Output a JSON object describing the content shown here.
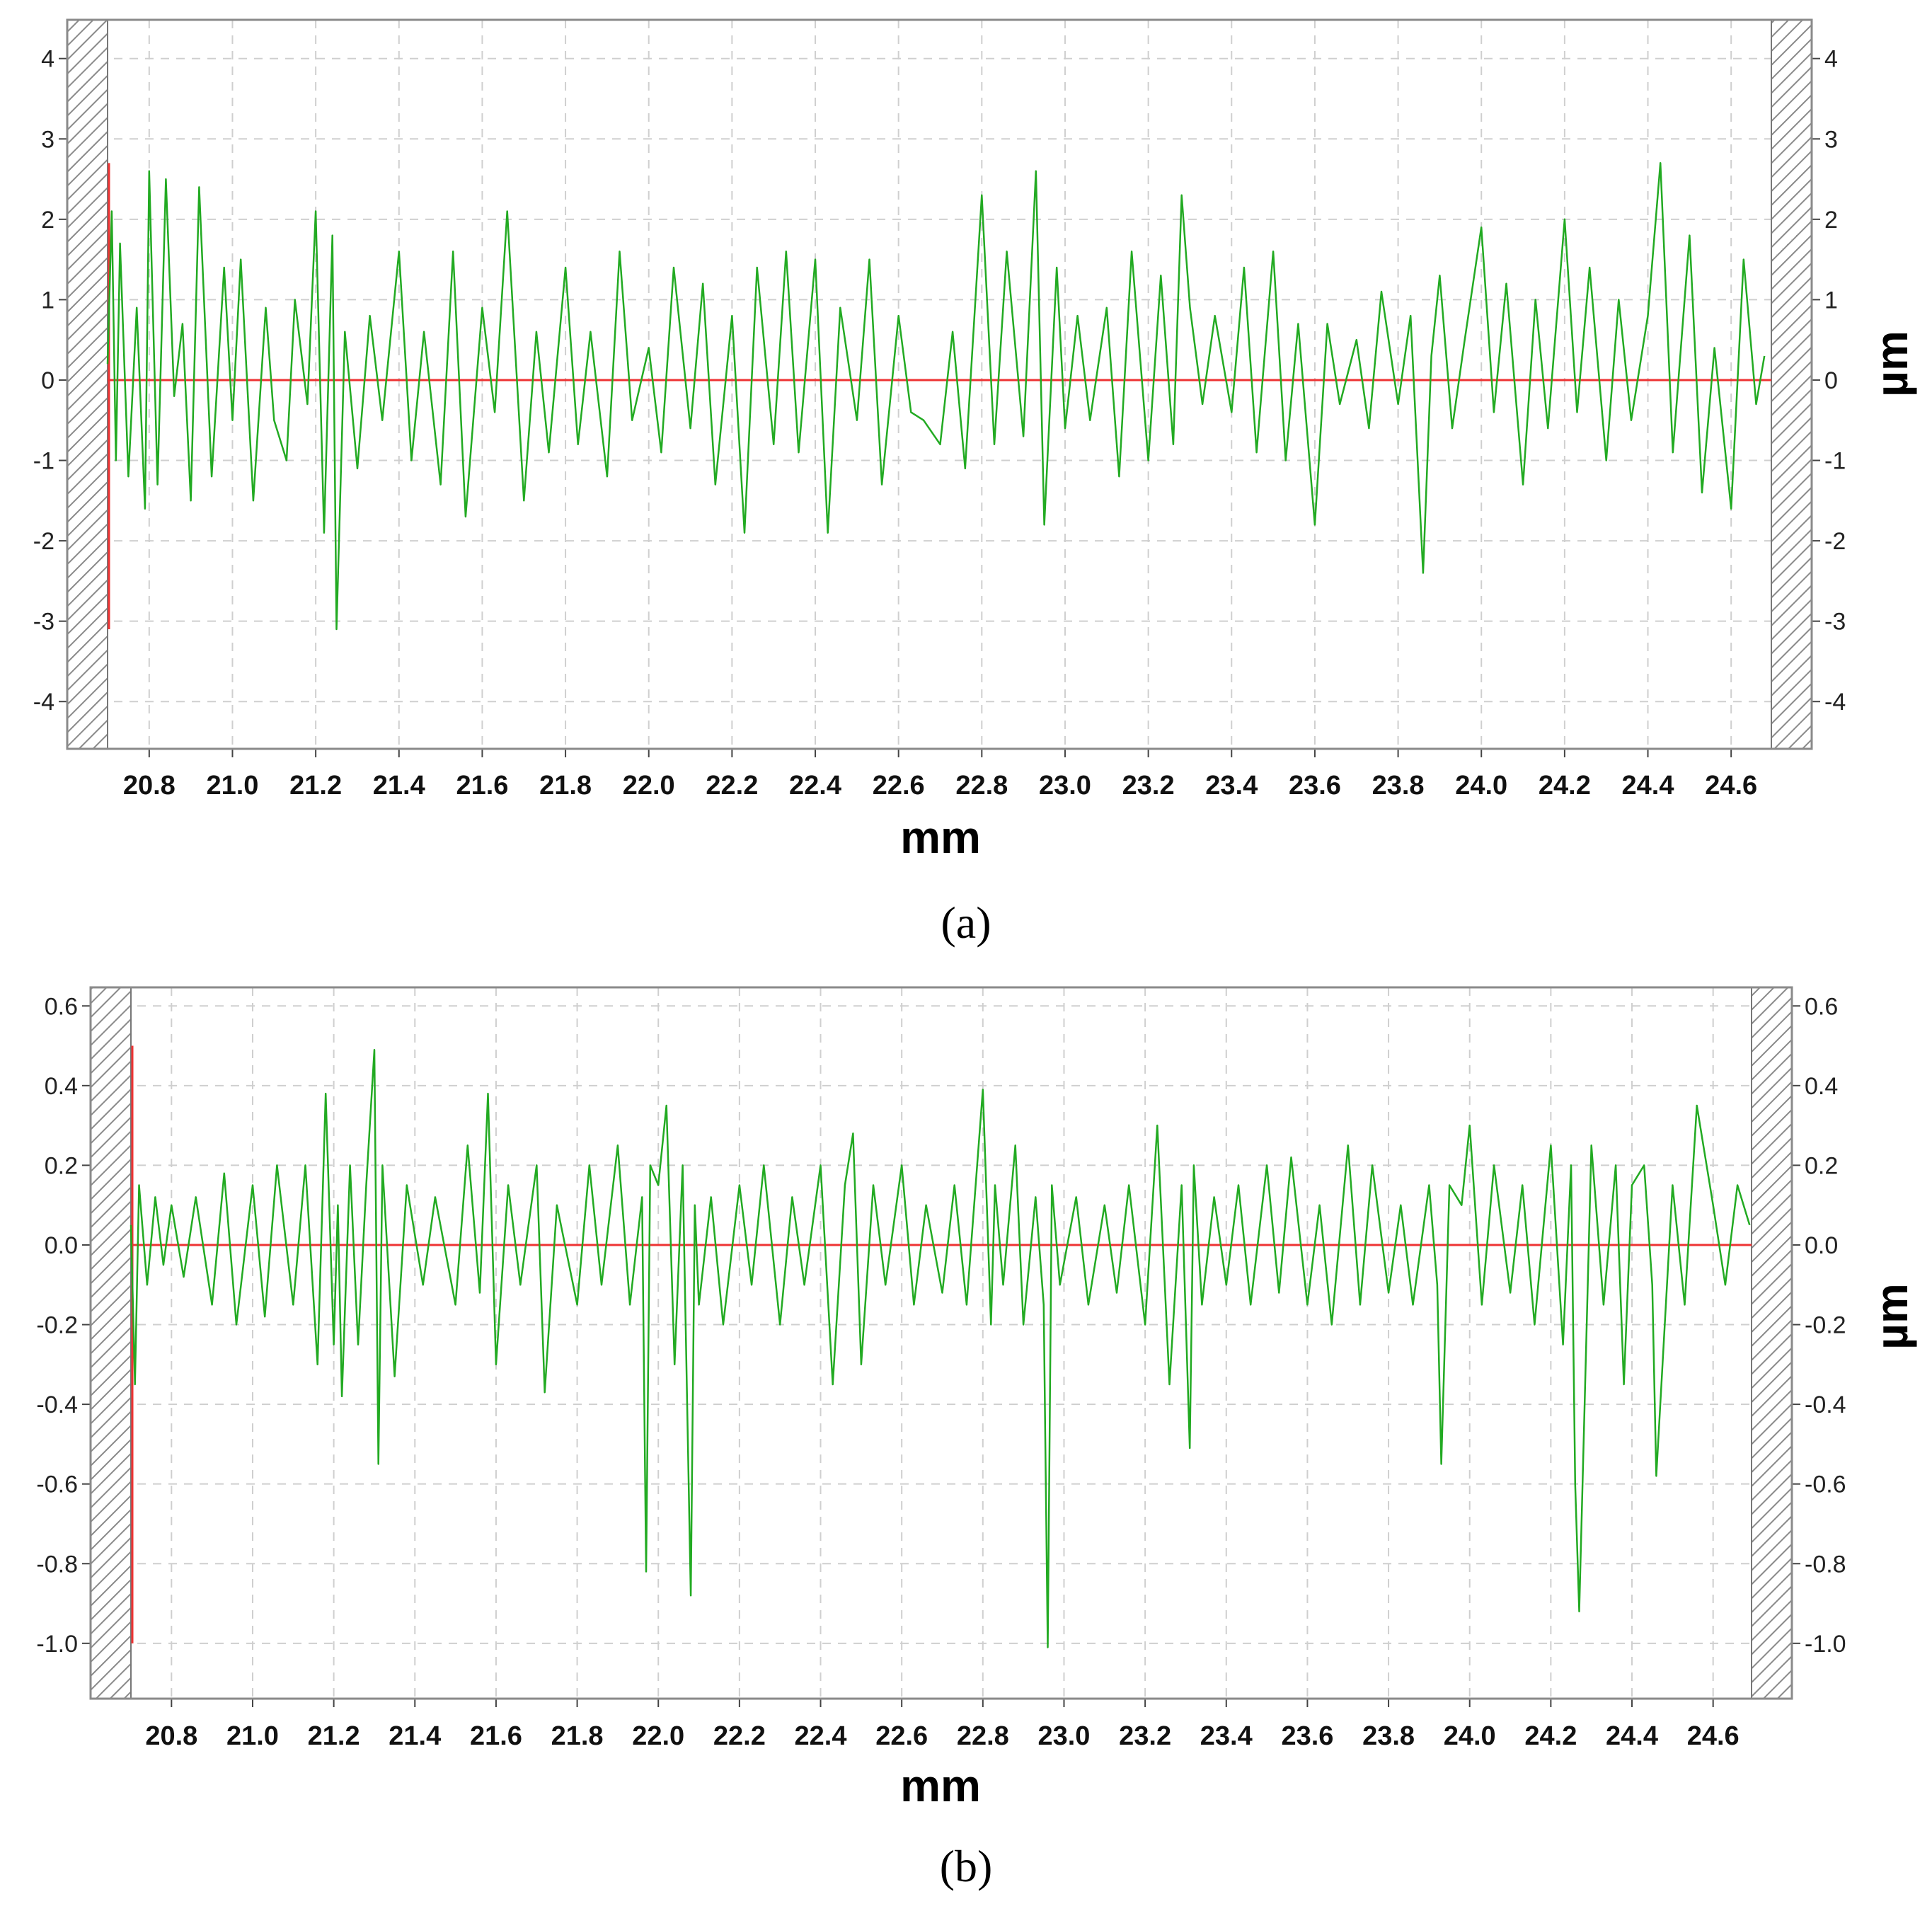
{
  "chart_data": [
    {
      "type": "line",
      "panel_label": "(a)",
      "xlabel": "mm",
      "ylabel": "µm",
      "xlim": [
        20.7,
        24.7
      ],
      "ylim": [
        -4.5,
        4.2
      ],
      "x_ticks": [
        "20.8",
        "21.0",
        "21.2",
        "21.4",
        "21.6",
        "21.8",
        "22.0",
        "22.2",
        "22.4",
        "22.6",
        "22.8",
        "23.0",
        "23.2",
        "23.4",
        "23.6",
        "23.8",
        "24.0",
        "24.2",
        "24.4",
        "24.6"
      ],
      "y_ticks": [
        "4",
        "3",
        "2",
        "1",
        "0",
        "-1",
        "-2",
        "-3",
        "-4"
      ],
      "grid": true,
      "colors": {
        "profile": "#22aa22",
        "reference": "#ee3333",
        "hatch": "#888888"
      },
      "reference_line": {
        "y": 0,
        "x_start": 20.7,
        "y_range": [
          -3.1,
          2.7
        ]
      },
      "series": [
        {
          "x": [
            20.7,
            20.71,
            20.72,
            20.73,
            20.75,
            20.77,
            20.79,
            20.8,
            20.82,
            20.84,
            20.86,
            20.88,
            20.9,
            20.92,
            20.95,
            20.98,
            21.0,
            21.02,
            21.05,
            21.08,
            21.1,
            21.13,
            21.15,
            21.18,
            21.2,
            21.22,
            21.24,
            21.25,
            21.27,
            21.3,
            21.33,
            21.36,
            21.4,
            21.43,
            21.46,
            21.5,
            21.53,
            21.56,
            21.6,
            21.63,
            21.66,
            21.7,
            21.73,
            21.76,
            21.8,
            21.83,
            21.86,
            21.9,
            21.93,
            21.96,
            22.0,
            22.03,
            22.06,
            22.1,
            22.13,
            22.16,
            22.2,
            22.23,
            22.26,
            22.3,
            22.33,
            22.36,
            22.4,
            22.43,
            22.46,
            22.5,
            22.53,
            22.56,
            22.6,
            22.63,
            22.66,
            22.7,
            22.73,
            22.76,
            22.8,
            22.83,
            22.86,
            22.9,
            22.93,
            22.95,
            22.98,
            23.0,
            23.03,
            23.06,
            23.1,
            23.13,
            23.16,
            23.2,
            23.23,
            23.26,
            23.28,
            23.3,
            23.33,
            23.36,
            23.4,
            23.43,
            23.46,
            23.5,
            23.53,
            23.56,
            23.6,
            23.63,
            23.66,
            23.7,
            23.73,
            23.76,
            23.8,
            23.83,
            23.86,
            23.88,
            23.9,
            23.93,
            23.96,
            24.0,
            24.03,
            24.06,
            24.1,
            24.13,
            24.16,
            24.2,
            24.23,
            24.26,
            24.3,
            24.33,
            24.36,
            24.4,
            24.43,
            24.46,
            24.5,
            24.53,
            24.56,
            24.6,
            24.63,
            24.66,
            24.68
          ],
          "y": [
            0.2,
            2.1,
            -1.0,
            1.7,
            -1.2,
            0.9,
            -1.6,
            2.6,
            -1.3,
            2.5,
            -0.2,
            0.7,
            -1.5,
            2.4,
            -1.2,
            1.4,
            -0.5,
            1.5,
            -1.5,
            0.9,
            -0.5,
            -1.0,
            1.0,
            -0.3,
            2.1,
            -1.9,
            1.8,
            -3.1,
            0.6,
            -1.1,
            0.8,
            -0.5,
            1.6,
            -1.0,
            0.6,
            -1.3,
            1.6,
            -1.7,
            0.9,
            -0.4,
            2.1,
            -1.5,
            0.6,
            -0.9,
            1.4,
            -0.8,
            0.6,
            -1.2,
            1.6,
            -0.5,
            0.4,
            -0.9,
            1.4,
            -0.6,
            1.2,
            -1.3,
            0.8,
            -1.9,
            1.4,
            -0.8,
            1.6,
            -0.9,
            1.5,
            -1.9,
            0.9,
            -0.5,
            1.5,
            -1.3,
            0.8,
            -0.4,
            -0.5,
            -0.8,
            0.6,
            -1.1,
            2.3,
            -0.8,
            1.6,
            -0.7,
            2.6,
            -1.8,
            1.4,
            -0.6,
            0.8,
            -0.5,
            0.9,
            -1.2,
            1.6,
            -1.0,
            1.3,
            -0.8,
            2.3,
            0.9,
            -0.3,
            0.8,
            -0.4,
            1.4,
            -0.9,
            1.6,
            -1.0,
            0.7,
            -1.8,
            0.7,
            -0.3,
            0.5,
            -0.6,
            1.1,
            -0.3,
            0.8,
            -2.4,
            0.3,
            1.3,
            -0.6,
            0.5,
            1.9,
            -0.4,
            1.2,
            -1.3,
            1.0,
            -0.6,
            2.0,
            -0.4,
            1.4,
            -1.0,
            1.0,
            -0.5,
            0.8,
            2.7,
            -0.9,
            1.8,
            -1.4,
            0.4,
            -1.6,
            1.5,
            -0.3,
            0.3
          ]
        }
      ]
    },
    {
      "type": "line",
      "panel_label": "(b)",
      "xlabel": "mm",
      "ylabel": "µm",
      "xlim": [
        20.7,
        24.7
      ],
      "ylim": [
        -1.13,
        0.62
      ],
      "x_ticks": [
        "20.8",
        "21.0",
        "21.2",
        "21.4",
        "21.6",
        "21.8",
        "22.0",
        "22.2",
        "22.4",
        "22.6",
        "22.8",
        "23.0",
        "23.2",
        "23.4",
        "23.6",
        "23.8",
        "24.0",
        "24.2",
        "24.4",
        "24.6"
      ],
      "y_ticks": [
        "0.6",
        "0.4",
        "0.2",
        "0.0",
        "-0.2",
        "-0.4",
        "-0.6",
        "-0.8",
        "-1.0"
      ],
      "grid": true,
      "colors": {
        "profile": "#22aa22",
        "reference": "#ee3333",
        "hatch": "#888888"
      },
      "reference_line": {
        "y": 0,
        "x_start": 20.7,
        "y_range": [
          -1.0,
          0.5
        ]
      },
      "series": [
        {
          "x": [
            20.7,
            20.71,
            20.72,
            20.74,
            20.76,
            20.78,
            20.8,
            20.83,
            20.86,
            20.9,
            20.93,
            20.96,
            21.0,
            21.03,
            21.06,
            21.1,
            21.13,
            21.16,
            21.18,
            21.2,
            21.21,
            21.22,
            21.24,
            21.26,
            21.28,
            21.3,
            21.31,
            21.32,
            21.35,
            21.38,
            21.42,
            21.45,
            21.5,
            21.53,
            21.56,
            21.58,
            21.6,
            21.63,
            21.66,
            21.7,
            21.72,
            21.75,
            21.8,
            21.83,
            21.86,
            21.9,
            21.93,
            21.96,
            21.97,
            21.98,
            22.0,
            22.02,
            22.04,
            22.06,
            22.08,
            22.09,
            22.1,
            22.13,
            22.16,
            22.2,
            22.23,
            22.26,
            22.3,
            22.33,
            22.36,
            22.4,
            22.43,
            22.46,
            22.48,
            22.5,
            22.53,
            22.56,
            22.6,
            22.63,
            22.66,
            22.7,
            22.73,
            22.76,
            22.8,
            22.82,
            22.83,
            22.85,
            22.88,
            22.9,
            22.93,
            22.95,
            22.96,
            22.97,
            22.99,
            23.03,
            23.06,
            23.1,
            23.13,
            23.16,
            23.2,
            23.23,
            23.26,
            23.29,
            23.31,
            23.32,
            23.34,
            23.37,
            23.4,
            23.43,
            23.46,
            23.5,
            23.53,
            23.56,
            23.6,
            23.63,
            23.66,
            23.7,
            23.73,
            23.76,
            23.8,
            23.83,
            23.86,
            23.9,
            23.92,
            23.93,
            23.95,
            23.98,
            24.0,
            24.03,
            24.06,
            24.1,
            24.13,
            24.16,
            24.2,
            24.23,
            24.25,
            24.26,
            24.27,
            24.3,
            24.33,
            24.36,
            24.38,
            24.4,
            24.43,
            24.45,
            24.46,
            24.5,
            24.53,
            24.56,
            24.6,
            24.63,
            24.66,
            24.69
          ],
          "y": [
            0.05,
            -0.35,
            0.15,
            -0.1,
            0.12,
            -0.05,
            0.1,
            -0.08,
            0.12,
            -0.15,
            0.18,
            -0.2,
            0.15,
            -0.18,
            0.2,
            -0.15,
            0.2,
            -0.3,
            0.38,
            -0.25,
            0.1,
            -0.38,
            0.2,
            -0.25,
            0.15,
            0.49,
            -0.55,
            0.2,
            -0.33,
            0.15,
            -0.1,
            0.12,
            -0.15,
            0.25,
            -0.12,
            0.38,
            -0.3,
            0.15,
            -0.1,
            0.2,
            -0.37,
            0.1,
            -0.15,
            0.2,
            -0.1,
            0.25,
            -0.15,
            0.12,
            -0.82,
            0.2,
            0.15,
            0.35,
            -0.3,
            0.2,
            -0.88,
            0.1,
            -0.15,
            0.12,
            -0.2,
            0.15,
            -0.1,
            0.2,
            -0.2,
            0.12,
            -0.1,
            0.2,
            -0.35,
            0.15,
            0.28,
            -0.3,
            0.15,
            -0.1,
            0.2,
            -0.15,
            0.1,
            -0.12,
            0.15,
            -0.15,
            0.39,
            -0.2,
            0.15,
            -0.1,
            0.25,
            -0.2,
            0.12,
            -0.15,
            -1.01,
            0.15,
            -0.1,
            0.12,
            -0.15,
            0.1,
            -0.12,
            0.15,
            -0.2,
            0.3,
            -0.35,
            0.15,
            -0.51,
            0.2,
            -0.15,
            0.12,
            -0.1,
            0.15,
            -0.15,
            0.2,
            -0.12,
            0.22,
            -0.15,
            0.1,
            -0.2,
            0.25,
            -0.15,
            0.2,
            -0.12,
            0.1,
            -0.15,
            0.15,
            -0.1,
            -0.55,
            0.15,
            0.1,
            0.3,
            -0.15,
            0.2,
            -0.12,
            0.15,
            -0.2,
            0.25,
            -0.25,
            0.2,
            -0.6,
            -0.92,
            0.25,
            -0.15,
            0.2,
            -0.35,
            0.15,
            0.2,
            -0.1,
            -0.58,
            0.15,
            -0.15,
            0.35,
            0.1,
            -0.1,
            0.15,
            0.05
          ]
        }
      ]
    }
  ]
}
